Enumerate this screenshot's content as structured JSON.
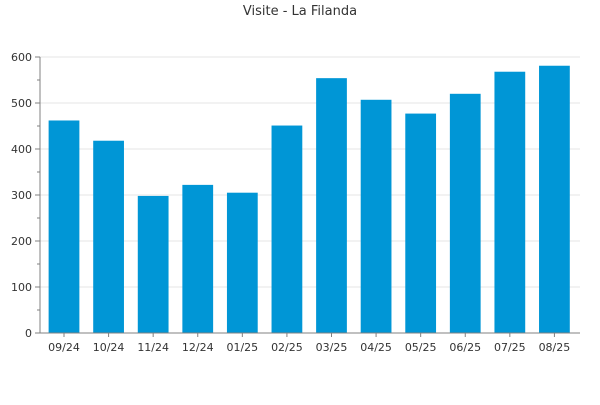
{
  "chart_data": {
    "type": "bar",
    "title": "Visite - La Filanda",
    "categories": [
      "09/24",
      "10/24",
      "11/24",
      "12/24",
      "01/25",
      "02/25",
      "03/25",
      "04/25",
      "05/25",
      "06/25",
      "07/25",
      "08/25"
    ],
    "values": [
      462,
      418,
      298,
      322,
      305,
      451,
      554,
      507,
      477,
      520,
      568,
      581
    ],
    "ylim": [
      0,
      600
    ],
    "yticks": [
      0,
      100,
      200,
      300,
      400,
      500,
      600
    ],
    "grid": true,
    "bar_color": "#0096d6",
    "grid_color": "#e6e6e6",
    "axis_color": "#808080",
    "text_color": "#333333"
  }
}
